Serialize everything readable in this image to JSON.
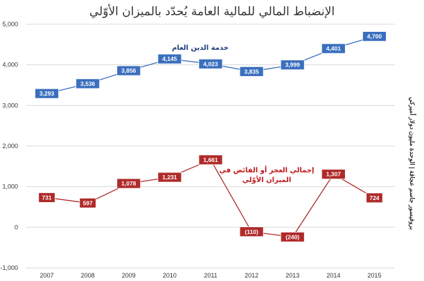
{
  "chart_data": {
    "type": "line",
    "title": "الإنضباط المالي للمالية العامة يُحدّد بالميزان الأوّلي",
    "xlabel": "",
    "ylabel": "بروفيسور جاسم عجاقة | الوحدة مليون دولار أميركي",
    "ylim": [
      -1000,
      5000
    ],
    "yticks": [
      -1000,
      0,
      1000,
      2000,
      3000,
      4000,
      5000
    ],
    "ytick_labels": [
      "-1,000",
      "0",
      "1,000",
      "2,000",
      "3,000",
      "4,000",
      "5,000"
    ],
    "grid": true,
    "categories": [
      "2007",
      "2008",
      "2009",
      "2010",
      "2011",
      "2012",
      "2013",
      "2014",
      "2015"
    ],
    "series": [
      {
        "name": "خدمة الدين العام",
        "color": "#3a6fbf",
        "values": [
          3293,
          3536,
          3856,
          4145,
          4023,
          3835,
          3999,
          4401,
          4700
        ],
        "labels": [
          "3,293",
          "3,536",
          "3,856",
          "4,145",
          "4,023",
          "3,835",
          "3,999",
          "4,401",
          "4,700"
        ]
      },
      {
        "name": "إجمالي العجز أو الفائض في الميزان الأوّلي",
        "name_lines": [
          "إجمالي العجز أو الفائض في",
          "الميزان الأوّلي"
        ],
        "color": "#b02a2a",
        "values": [
          731,
          597,
          1078,
          1231,
          1661,
          -110,
          -240,
          1307,
          724
        ],
        "labels": [
          "731",
          "597",
          "1,078",
          "1,231",
          "1,661",
          "(110)",
          "(240)",
          "1,307",
          "724"
        ]
      }
    ]
  }
}
